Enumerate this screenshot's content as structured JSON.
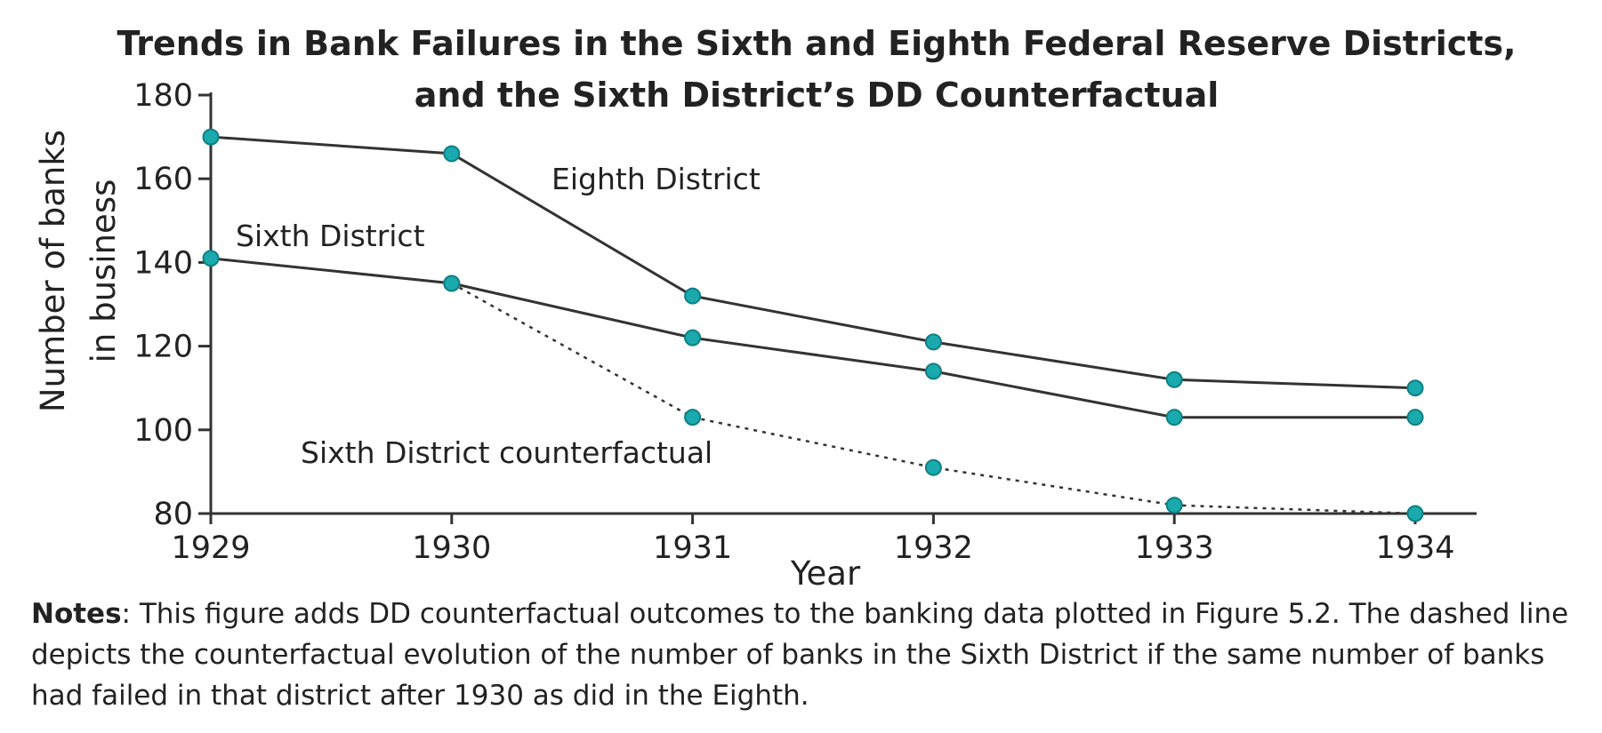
{
  "chart_data": {
    "type": "line",
    "title": "Trends in Bank Failures in the Sixth and Eighth Federal Reserve Districts,",
    "subtitle": "and the Sixth District’s DD Counterfactual",
    "xlabel": "Year",
    "ylabel_line1": "Number of banks",
    "ylabel_line2": "in business",
    "x": [
      1929,
      1930,
      1931,
      1932,
      1933,
      1934
    ],
    "xlim": [
      1929,
      1934
    ],
    "ylim": [
      80,
      180
    ],
    "yticks": [
      80,
      100,
      120,
      140,
      160,
      180
    ],
    "grid": false,
    "series": [
      {
        "name": "Eighth District",
        "x": [
          1929,
          1930,
          1931,
          1932,
          1933,
          1934
        ],
        "values": [
          170,
          166,
          132,
          121,
          112,
          110
        ],
        "style": "solid"
      },
      {
        "name": "Sixth District",
        "x": [
          1929,
          1930,
          1931,
          1932,
          1933,
          1934
        ],
        "values": [
          141,
          135,
          122,
          114,
          103,
          103
        ],
        "style": "solid"
      },
      {
        "name": "Sixth District counterfactual",
        "x": [
          1930,
          1931,
          1932,
          1933,
          1934
        ],
        "values": [
          135,
          103,
          91,
          82,
          80
        ],
        "style": "dashed"
      }
    ],
    "colors": {
      "line": "#333333",
      "marker_fill": "#1aa9ad",
      "marker_stroke": "#0f7f84"
    }
  },
  "notes": {
    "label": "Notes",
    "text": ": This figure adds DD counterfactual outcomes to the banking data plotted in Figure 5.2. The dashed line depicts the counterfactual evolution of the number of banks in the Sixth District if the same number of banks had failed in that district after 1930 as did in the Eighth."
  }
}
